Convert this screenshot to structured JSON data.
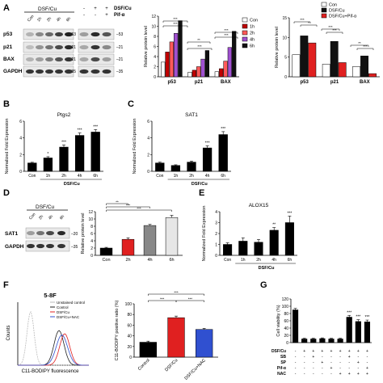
{
  "panels": {
    "A": {
      "letter": "A",
      "blot": {
        "group_label": "DSF/Cu",
        "lanes": [
          "Con",
          "1h",
          "2h",
          "4h",
          "6h"
        ],
        "rows": [
          "p53",
          "p21",
          "BAX",
          "GAPDH"
        ],
        "right_markers": [
          "53",
          "21",
          "21",
          "35"
        ],
        "right_treat_labels": [
          "DSF/Cu",
          "Pif-α"
        ],
        "right_treat_rows": [
          [
            "-",
            "+",
            "+"
          ],
          [
            "-",
            "-",
            "+"
          ]
        ],
        "right_markers2": [
          "53",
          "21",
          "21",
          "35"
        ]
      }
    },
    "B": {
      "letter": "B"
    },
    "C": {
      "letter": "C"
    },
    "D": {
      "letter": "D",
      "blot": {
        "group_label": "DSF/Cu",
        "lanes": [
          "Con",
          "2h",
          "4h",
          "6h"
        ],
        "rows": [
          "SAT1",
          "GAPDH"
        ],
        "markers": [
          "20",
          "35"
        ]
      }
    },
    "E": {
      "letter": "E"
    },
    "F": {
      "letter": "F",
      "flow": {
        "title": "5-8F",
        "legend": [
          "Unstained control",
          "Control",
          "DSF/Cu",
          "DSF/Cu+NAC"
        ],
        "legend_colors": [
          "#bbbbbb",
          "#222222",
          "#e02020",
          "#3050d0"
        ],
        "xlabel": "C11-BODIPY fluorescence",
        "ylabel": "Counts"
      }
    },
    "G": {
      "letter": "G",
      "treat_labels": [
        "DSF/Cu",
        "SB",
        "SP",
        "Pif-α",
        "NAC"
      ],
      "treat_rows": [
        [
          "-",
          "+",
          "+",
          "+",
          "+",
          "+",
          "+",
          "+",
          "+"
        ],
        [
          "-",
          "-",
          "+",
          "-",
          "-",
          "-",
          "+",
          "-",
          "-"
        ],
        [
          "-",
          "-",
          "-",
          "+",
          "-",
          "-",
          "-",
          "+",
          "-"
        ],
        [
          "-",
          "-",
          "-",
          "-",
          "+",
          "-",
          "-",
          "-",
          "+"
        ],
        [
          "-",
          "-",
          "-",
          "-",
          "-",
          "+",
          "+",
          "+",
          "+"
        ]
      ]
    }
  },
  "chart_data": [
    {
      "id": "A1",
      "type": "bar",
      "ylabel": "Relative protein level",
      "ylim": [
        0,
        12
      ],
      "yticks": [
        0,
        2,
        4,
        6,
        8,
        10,
        12
      ],
      "categories": [
        "p53",
        "p21",
        "BAX"
      ],
      "series": [
        {
          "name": "Con",
          "color": "#ffffff",
          "values": [
            2.9,
            0.9,
            1.0
          ]
        },
        {
          "name": "1h",
          "color": "#c00000",
          "values": [
            4.9,
            1.3,
            1.6
          ]
        },
        {
          "name": "2h",
          "color": "#ff5a5a",
          "values": [
            6.9,
            2.0,
            3.1
          ]
        },
        {
          "name": "4h",
          "color": "#a050d0",
          "values": [
            8.6,
            3.5,
            5.8
          ]
        },
        {
          "name": "6h",
          "color": "#111111",
          "values": [
            11.1,
            5.2,
            9.0
          ]
        }
      ],
      "significance": [
        "***",
        "***",
        "**",
        "***",
        "***",
        "***"
      ]
    },
    {
      "id": "A2",
      "type": "bar",
      "ylabel": "Relative protein level",
      "ylim": [
        0,
        15
      ],
      "yticks": [
        0,
        5,
        10,
        15
      ],
      "categories": [
        "p53",
        "p21",
        "BAX"
      ],
      "series": [
        {
          "name": "Con",
          "color": "#ffffff",
          "values": [
            5.6,
            3.2,
            2.6
          ]
        },
        {
          "name": "DSF/Cu",
          "color": "#111111",
          "values": [
            10.4,
            9.0,
            5.3
          ]
        },
        {
          "name": "DSF/Cu+Pif-α",
          "color": "#e02020",
          "values": [
            8.6,
            3.6,
            0.8
          ]
        }
      ],
      "significance": [
        "***",
        "*",
        "***",
        "***",
        "**",
        "***"
      ]
    },
    {
      "id": "B",
      "type": "bar",
      "title": "Ptgs2",
      "ylabel": "Normalized Fold Expression",
      "xgroup": "DSF/Cu",
      "ylim": [
        0,
        6
      ],
      "yticks": [
        0,
        2,
        4,
        6
      ],
      "categories": [
        "Con",
        "1h",
        "2h",
        "4h",
        "6h"
      ],
      "values": [
        1.0,
        1.6,
        2.9,
        4.3,
        4.7
      ],
      "errors": [
        0.08,
        0.15,
        0.25,
        0.3,
        0.3
      ],
      "annot": [
        "",
        "*",
        "***",
        "***",
        "***"
      ]
    },
    {
      "id": "C",
      "type": "bar",
      "title": "SAT1",
      "ylabel": "Normalized Fold Expression",
      "xgroup": "DSF/Cu",
      "ylim": [
        0,
        6
      ],
      "yticks": [
        0,
        2,
        4,
        6
      ],
      "categories": [
        "Con",
        "1h",
        "2h",
        "4h",
        "6h"
      ],
      "values": [
        1.0,
        0.7,
        1.1,
        2.8,
        4.4
      ],
      "errors": [
        0.1,
        0.08,
        0.12,
        0.25,
        0.35
      ],
      "annot": [
        "",
        "",
        "",
        "***",
        "***"
      ]
    },
    {
      "id": "D",
      "type": "bar",
      "ylabel": "Relative protein level",
      "ylim": [
        0,
        12
      ],
      "yticks": [
        0,
        2,
        4,
        6,
        8,
        10,
        12
      ],
      "categories": [
        "Con",
        "2h",
        "4h",
        "6h"
      ],
      "colors": [
        "#000000",
        "#e02020",
        "#888888",
        "#e6e6e6"
      ],
      "values": [
        2.0,
        4.4,
        8.2,
        10.4
      ],
      "errors": [
        0.2,
        0.4,
        0.3,
        0.6
      ],
      "significance": [
        "**",
        "***",
        "***"
      ]
    },
    {
      "id": "E",
      "type": "bar",
      "title": "ALOX15",
      "ylabel": "Normalized Fold Expression",
      "xgroup": "DSF/Cu",
      "ylim": [
        0,
        4
      ],
      "yticks": [
        0,
        1,
        2,
        3,
        4
      ],
      "categories": [
        "Con",
        "1h",
        "2h",
        "4h",
        "6h"
      ],
      "values": [
        1.0,
        1.3,
        1.2,
        2.3,
        3.0
      ],
      "errors": [
        0.15,
        0.3,
        0.25,
        0.25,
        0.6
      ],
      "annot": [
        "",
        "",
        "",
        "**",
        "***"
      ]
    },
    {
      "id": "F",
      "type": "bar",
      "ylabel": "C11-BODIPY positive ratio (%)",
      "ylim": [
        0,
        100
      ],
      "yticks": [
        0,
        20,
        40,
        60,
        80,
        100
      ],
      "categories": [
        "Control",
        "DSF/Cu",
        "DSF/Cu+NAC"
      ],
      "colors": [
        "#000000",
        "#e02020",
        "#3050d0"
      ],
      "values": [
        28,
        74,
        52
      ],
      "errors": [
        2,
        3,
        2
      ],
      "significance": [
        "***",
        "***",
        "***"
      ]
    },
    {
      "id": "G",
      "type": "bar",
      "ylabel": "Cell viability (%)",
      "ylim": [
        0,
        120
      ],
      "yticks": [
        0,
        20,
        40,
        60,
        80,
        100,
        120
      ],
      "categories": [
        "1",
        "2",
        "3",
        "4",
        "5",
        "6",
        "7",
        "8",
        "9"
      ],
      "values": [
        90,
        10,
        10,
        11,
        10,
        10,
        70,
        58,
        57
      ],
      "errors": [
        4,
        2,
        2,
        2,
        2,
        2,
        5,
        5,
        5
      ],
      "annot": [
        "",
        "",
        "",
        "",
        "",
        "",
        "***",
        "***",
        "***"
      ]
    }
  ]
}
